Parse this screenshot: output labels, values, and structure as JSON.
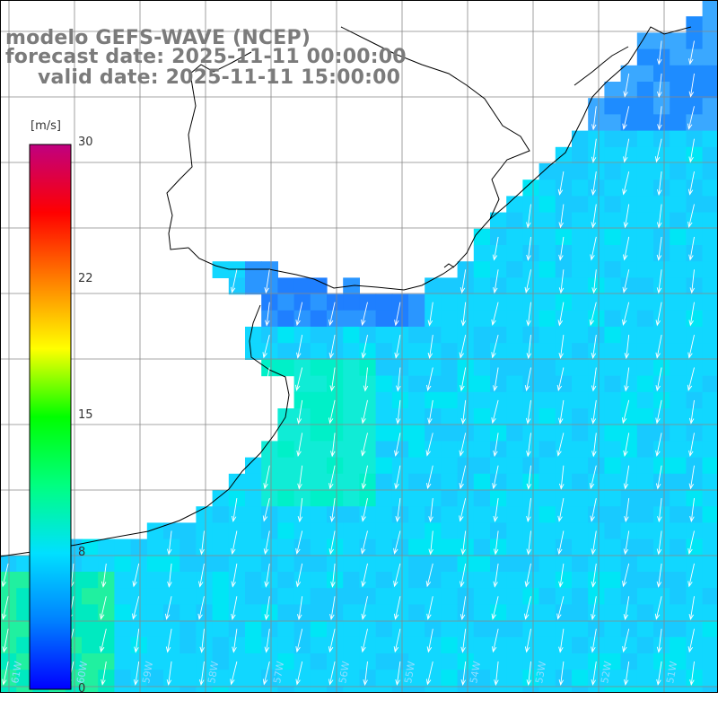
{
  "title": {
    "line1": "modelo GEFS-WAVE (NCEP)",
    "line2": "forecast date: 2025-11-11 00:00:00",
    "line3": "valid date: 2025-11-11 15:00:00"
  },
  "colorbar": {
    "unit": "[m/s]",
    "ticks": [
      "30",
      "22",
      "15",
      "8",
      "0"
    ],
    "range": [
      0,
      30
    ],
    "stops": [
      "#0000ff",
      "#0080ff",
      "#00e0ff",
      "#00ff80",
      "#00ff00",
      "#ffff00",
      "#ff8000",
      "#ff0000",
      "#c00080"
    ]
  },
  "lon_labels": [
    "61W",
    "60W",
    "59W",
    "58W",
    "57W",
    "56W",
    "55W",
    "54W",
    "53W",
    "52W",
    "51W"
  ],
  "wind_direction": "south-southwest"
}
